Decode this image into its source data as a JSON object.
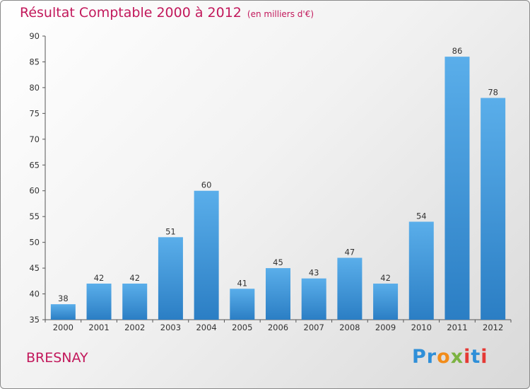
{
  "title": "Résultat Comptable 2000 à 2012",
  "subtitle": "(en milliers d'€)",
  "commune": "BRESNAY",
  "logo_text": "Proxiti",
  "colors": {
    "title": "#c2185b",
    "bar_top": "#5aaeea",
    "bar_bottom": "#2b7ec4"
  },
  "chart_data": {
    "type": "bar",
    "title": "Résultat Comptable 2000 à 2012",
    "subtitle": "(en milliers d'€)",
    "xlabel": "",
    "ylabel": "",
    "categories": [
      "2000",
      "2001",
      "2002",
      "2003",
      "2004",
      "2005",
      "2006",
      "2007",
      "2008",
      "2009",
      "2010",
      "2011",
      "2012"
    ],
    "values": [
      38,
      42,
      42,
      51,
      60,
      41,
      45,
      43,
      47,
      42,
      54,
      86,
      78
    ],
    "ylim": [
      35,
      90
    ],
    "yticks": [
      35,
      40,
      45,
      50,
      55,
      60,
      65,
      70,
      75,
      80,
      85,
      90
    ],
    "grid": false,
    "data_labels": true
  }
}
